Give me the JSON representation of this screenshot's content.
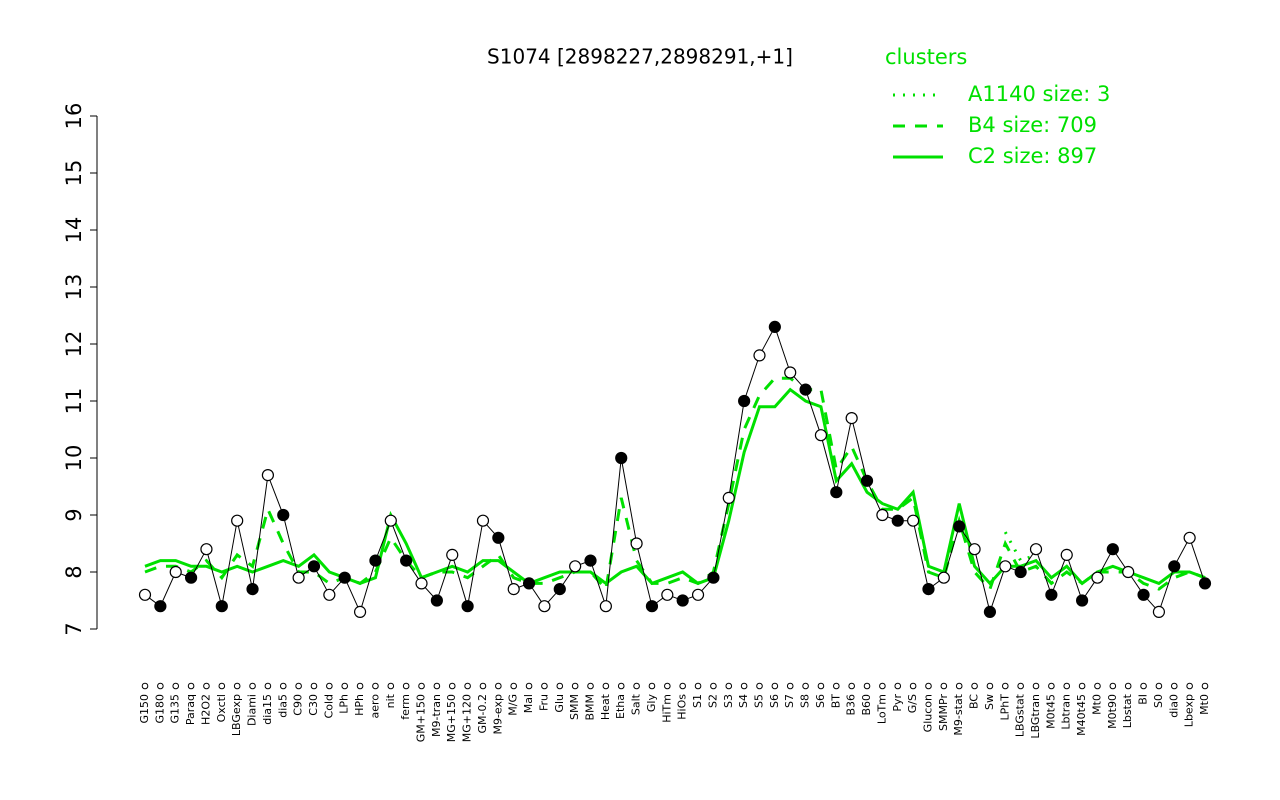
{
  "chart_data": {
    "type": "line",
    "title": "S1074 [2898227,2898291,+1]",
    "legend_title": "clusters",
    "legend": "top-right",
    "categories": [
      "G150",
      "G180",
      "G135",
      "Paraq",
      "H2O2",
      "Oxctl",
      "LBGexp",
      "Diami",
      "dia15",
      "dia5",
      "C90",
      "C30",
      "Cold",
      "LPh",
      "HPh",
      "aero",
      "nit",
      "ferm",
      "GM+150",
      "M9-tran",
      "MG+150",
      "MG+120",
      "GM-0.2",
      "M9-exp",
      "M/G",
      "Mal",
      "Fru",
      "Glu",
      "SMM",
      "BMM",
      "Heat",
      "Etha",
      "Salt",
      "Gly",
      "HiTm",
      "HiOs",
      "S1",
      "S2",
      "S3",
      "S4",
      "S5",
      "S6",
      "S7",
      "S8",
      "S6",
      "BT",
      "B36",
      "B60",
      "LoTm",
      "Pyr",
      "G/S",
      "Glucon",
      "SMMPr",
      "M9-stat",
      "BC",
      "Sw",
      "LPhT",
      "LBGstat",
      "LBGtran",
      "M0t45",
      "Lbtran",
      "M40t45",
      "Mt0",
      "M0t90",
      "Lbstat",
      "BI",
      "S0",
      "dia0",
      "Lbexp",
      "Mt0"
    ],
    "values": [
      7.6,
      7.4,
      8.0,
      7.9,
      8.4,
      7.4,
      8.9,
      7.7,
      9.7,
      9.0,
      7.9,
      8.1,
      7.6,
      7.9,
      7.3,
      8.2,
      8.9,
      8.2,
      7.8,
      7.5,
      8.3,
      7.4,
      8.9,
      8.6,
      7.7,
      7.8,
      7.4,
      7.7,
      8.1,
      8.2,
      7.4,
      10.0,
      8.5,
      7.4,
      7.6,
      7.5,
      7.6,
      7.9,
      9.3,
      11.0,
      11.8,
      12.3,
      11.5,
      11.2,
      10.4,
      9.4,
      10.7,
      9.6,
      9.0,
      8.9,
      8.9,
      7.7,
      7.9,
      8.8,
      8.4,
      7.3,
      8.1,
      8.0,
      8.4,
      7.6,
      8.3,
      7.5,
      7.9,
      8.4,
      8.0,
      7.6,
      7.3,
      8.1,
      8.6,
      7.8
    ],
    "series": [
      {
        "name": "A1140 size: 3",
        "color": "#00e000",
        "dash": "dotted",
        "values": [
          null,
          null,
          null,
          null,
          null,
          null,
          null,
          null,
          null,
          null,
          null,
          null,
          null,
          null,
          null,
          null,
          null,
          null,
          null,
          null,
          null,
          null,
          null,
          null,
          null,
          null,
          null,
          null,
          null,
          null,
          null,
          null,
          null,
          null,
          null,
          null,
          null,
          null,
          null,
          null,
          null,
          null,
          null,
          null,
          null,
          null,
          null,
          null,
          null,
          null,
          null,
          null,
          null,
          null,
          null,
          null,
          8.7,
          8.2,
          8.3,
          null,
          null,
          null,
          null,
          null,
          null,
          null,
          null,
          null,
          null,
          null
        ]
      },
      {
        "name": "B4 size: 709",
        "color": "#00e000",
        "dash": "dashed",
        "values": [
          8.0,
          8.1,
          8.1,
          8.0,
          8.2,
          7.9,
          8.3,
          8.1,
          9.1,
          8.5,
          8.0,
          8.0,
          7.8,
          7.9,
          7.8,
          8.0,
          8.6,
          8.2,
          7.9,
          8.0,
          8.0,
          7.9,
          8.1,
          8.3,
          7.9,
          7.8,
          7.8,
          7.9,
          8.0,
          8.0,
          7.7,
          9.3,
          8.2,
          7.8,
          7.8,
          7.9,
          7.8,
          8.0,
          9.2,
          10.5,
          11.1,
          11.4,
          11.4,
          11.2,
          11.2,
          9.8,
          10.2,
          9.6,
          9.1,
          9.1,
          9.3,
          8.0,
          7.9,
          8.9,
          8.0,
          7.7,
          8.5,
          8.0,
          8.1,
          7.8,
          8.0,
          7.8,
          8.0,
          8.0,
          8.0,
          7.8,
          7.7,
          7.9,
          8.0,
          7.9
        ]
      },
      {
        "name": "C2 size: 897",
        "color": "#00e000",
        "dash": "solid",
        "values": [
          8.1,
          8.2,
          8.2,
          8.1,
          8.1,
          8.0,
          8.1,
          8.0,
          8.1,
          8.2,
          8.1,
          8.3,
          8.0,
          7.9,
          7.8,
          7.9,
          9.0,
          8.5,
          7.9,
          8.0,
          8.1,
          8.0,
          8.2,
          8.2,
          8.0,
          7.8,
          7.9,
          8.0,
          8.0,
          8.0,
          7.8,
          8.0,
          8.1,
          7.8,
          7.9,
          8.0,
          7.8,
          7.9,
          8.9,
          10.1,
          10.9,
          10.9,
          11.2,
          11.0,
          10.9,
          9.6,
          9.9,
          9.4,
          9.2,
          9.1,
          9.4,
          8.1,
          8.0,
          9.2,
          8.1,
          7.8,
          8.1,
          8.1,
          8.2,
          7.9,
          8.1,
          7.8,
          8.0,
          8.1,
          8.0,
          7.9,
          7.8,
          8.0,
          8.0,
          7.9
        ]
      }
    ],
    "marker_color": "#000000",
    "ylim": [
      7,
      16
    ],
    "yticks": [
      7,
      8,
      9,
      10,
      11,
      12,
      13,
      14,
      15,
      16
    ]
  }
}
